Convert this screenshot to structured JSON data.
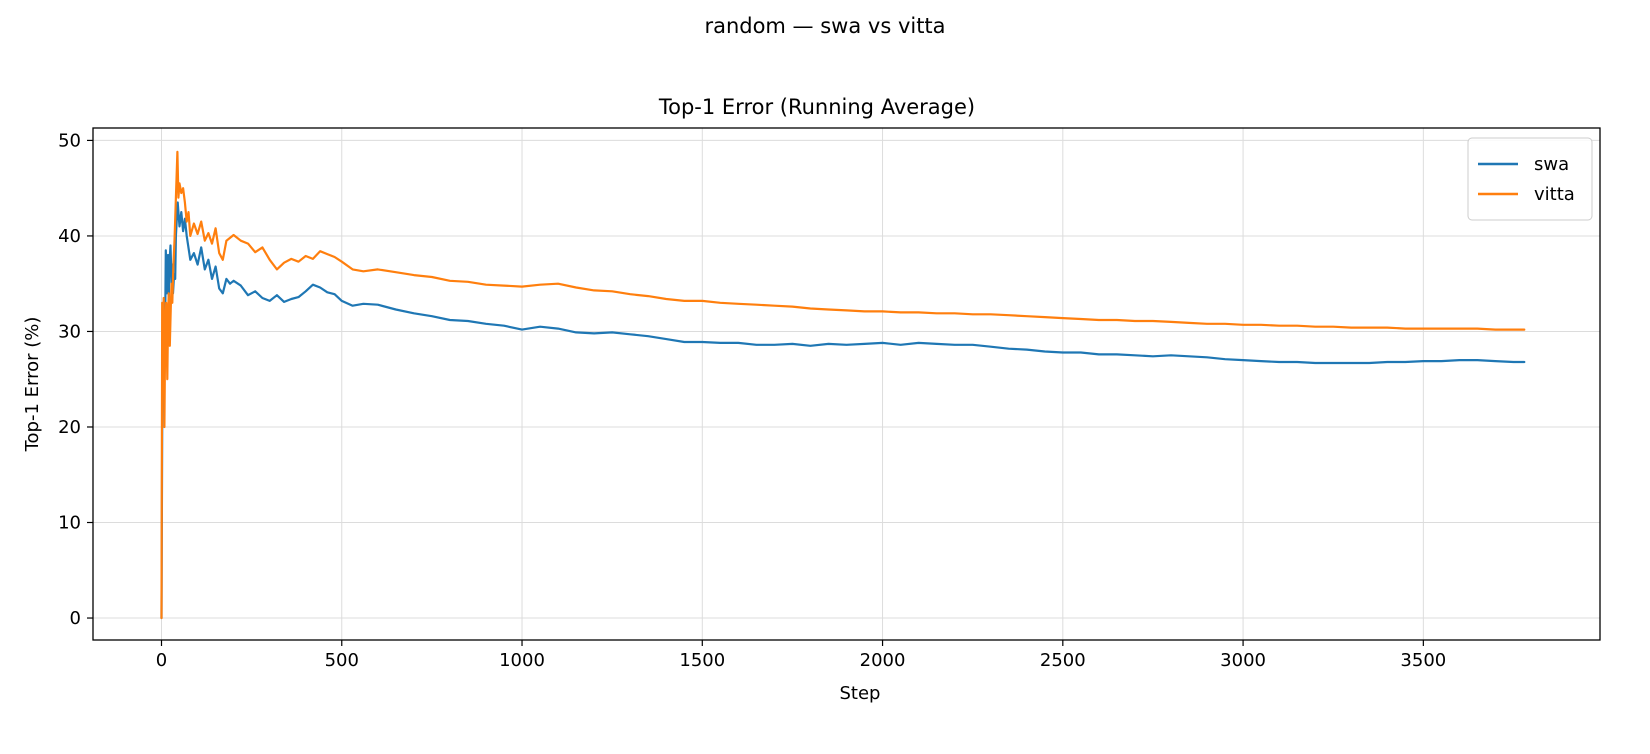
{
  "figure": {
    "suptitle": "random — swa vs vitta"
  },
  "chart_data": {
    "type": "line",
    "title": "Top-1 Error (Running Average)",
    "xlabel": "Step",
    "ylabel": "Top-1 Error (%)",
    "xlim": [
      -190,
      3990
    ],
    "ylim": [
      -2.3,
      51.3
    ],
    "xticks": [
      0,
      500,
      1000,
      1500,
      2000,
      2500,
      3000,
      3500
    ],
    "yticks": [
      0,
      10,
      20,
      30,
      40,
      50
    ],
    "grid": true,
    "legend_position": "top-right",
    "series": [
      {
        "name": "swa",
        "color": "#1f77b4",
        "x": [
          0,
          2,
          5,
          8,
          10,
          12,
          15,
          18,
          20,
          22,
          25,
          28,
          30,
          32,
          35,
          38,
          40,
          45,
          50,
          55,
          60,
          65,
          70,
          80,
          90,
          100,
          110,
          120,
          130,
          140,
          150,
          160,
          170,
          180,
          190,
          200,
          220,
          240,
          260,
          280,
          300,
          320,
          340,
          360,
          380,
          400,
          420,
          440,
          460,
          480,
          500,
          530,
          560,
          600,
          650,
          700,
          750,
          800,
          850,
          900,
          950,
          1000,
          1050,
          1100,
          1150,
          1200,
          1250,
          1300,
          1350,
          1400,
          1450,
          1500,
          1550,
          1600,
          1650,
          1700,
          1750,
          1800,
          1850,
          1900,
          1950,
          2000,
          2050,
          2100,
          2150,
          2200,
          2250,
          2300,
          2350,
          2400,
          2450,
          2500,
          2550,
          2600,
          2650,
          2700,
          2750,
          2800,
          2850,
          2900,
          2950,
          3000,
          3050,
          3100,
          3150,
          3200,
          3250,
          3300,
          3350,
          3400,
          3450,
          3500,
          3550,
          3600,
          3650,
          3700,
          3750,
          3780
        ],
        "y": [
          0,
          20,
          33,
          25,
          30,
          38.5,
          34,
          38,
          33,
          37,
          39,
          35,
          37,
          34,
          36,
          35.5,
          40,
          43.5,
          41,
          42.5,
          40.5,
          41.8,
          40,
          37.5,
          38.2,
          37,
          38.8,
          36.5,
          37.5,
          35.5,
          36.8,
          34.5,
          34,
          35.5,
          35,
          35.3,
          34.8,
          33.8,
          34.2,
          33.5,
          33.2,
          33.8,
          33.1,
          33.4,
          33.6,
          34.2,
          34.9,
          34.6,
          34.1,
          33.9,
          33.2,
          32.7,
          32.9,
          32.8,
          32.3,
          31.9,
          31.6,
          31.2,
          31.1,
          30.8,
          30.6,
          30.2,
          30.5,
          30.3,
          29.9,
          29.8,
          29.9,
          29.7,
          29.5,
          29.2,
          28.9,
          28.9,
          28.8,
          28.8,
          28.6,
          28.6,
          28.7,
          28.5,
          28.7,
          28.6,
          28.7,
          28.8,
          28.6,
          28.8,
          28.7,
          28.6,
          28.6,
          28.4,
          28.2,
          28.1,
          27.9,
          27.8,
          27.8,
          27.6,
          27.6,
          27.5,
          27.4,
          27.5,
          27.4,
          27.3,
          27.1,
          27.0,
          26.9,
          26.8,
          26.8,
          26.7,
          26.7,
          26.7,
          26.7,
          26.8,
          26.8,
          26.9,
          26.9,
          27.0,
          27.0,
          26.9,
          26.8,
          26.8
        ]
      },
      {
        "name": "vitta",
        "color": "#ff7f0e",
        "x": [
          0,
          2,
          4,
          6,
          8,
          10,
          13,
          16,
          18,
          20,
          23,
          26,
          28,
          30,
          33,
          36,
          40,
          44,
          47,
          50,
          55,
          60,
          65,
          70,
          75,
          80,
          90,
          100,
          110,
          120,
          130,
          140,
          150,
          160,
          170,
          180,
          190,
          200,
          220,
          240,
          260,
          280,
          300,
          320,
          340,
          360,
          380,
          400,
          420,
          440,
          460,
          480,
          500,
          530,
          560,
          600,
          650,
          700,
          750,
          800,
          850,
          900,
          950,
          1000,
          1050,
          1100,
          1150,
          1200,
          1250,
          1300,
          1350,
          1400,
          1450,
          1500,
          1550,
          1600,
          1650,
          1700,
          1750,
          1800,
          1850,
          1900,
          1950,
          2000,
          2050,
          2100,
          2150,
          2200,
          2250,
          2300,
          2350,
          2400,
          2450,
          2500,
          2550,
          2600,
          2650,
          2700,
          2750,
          2800,
          2850,
          2900,
          2950,
          3000,
          3050,
          3100,
          3150,
          3200,
          3250,
          3300,
          3350,
          3400,
          3450,
          3500,
          3550,
          3600,
          3650,
          3700,
          3750,
          3780
        ],
        "y": [
          0,
          33,
          29,
          33.5,
          20,
          29,
          33,
          25,
          31,
          34,
          28.5,
          33,
          35,
          33,
          37,
          39.5,
          44,
          48.8,
          44,
          45.5,
          44.5,
          45,
          43.5,
          41.5,
          42.5,
          40,
          41.3,
          40.2,
          41.5,
          39.5,
          40.3,
          39.2,
          40.8,
          38.2,
          37.5,
          39.5,
          39.8,
          40.1,
          39.5,
          39.2,
          38.3,
          38.8,
          37.5,
          36.5,
          37.2,
          37.6,
          37.3,
          37.9,
          37.6,
          38.4,
          38.1,
          37.8,
          37.3,
          36.5,
          36.3,
          36.5,
          36.2,
          35.9,
          35.7,
          35.3,
          35.2,
          34.9,
          34.8,
          34.7,
          34.9,
          35.0,
          34.6,
          34.3,
          34.2,
          33.9,
          33.7,
          33.4,
          33.2,
          33.2,
          33.0,
          32.9,
          32.8,
          32.7,
          32.6,
          32.4,
          32.3,
          32.2,
          32.1,
          32.1,
          32.0,
          32.0,
          31.9,
          31.9,
          31.8,
          31.8,
          31.7,
          31.6,
          31.5,
          31.4,
          31.3,
          31.2,
          31.2,
          31.1,
          31.1,
          31.0,
          30.9,
          30.8,
          30.8,
          30.7,
          30.7,
          30.6,
          30.6,
          30.5,
          30.5,
          30.4,
          30.4,
          30.4,
          30.3,
          30.3,
          30.3,
          30.3,
          30.3,
          30.2,
          30.2,
          30.2
        ]
      }
    ]
  }
}
